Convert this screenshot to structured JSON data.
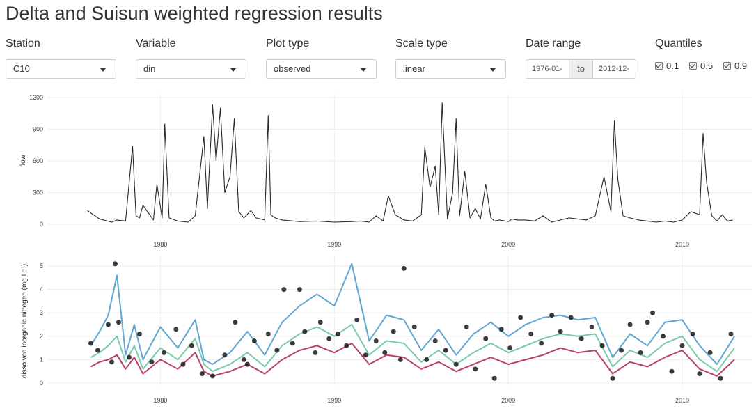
{
  "page": {
    "title": "Delta and Suisun weighted regression results"
  },
  "controls": {
    "station": {
      "label": "Station",
      "value": "C10"
    },
    "variable": {
      "label": "Variable",
      "value": "din"
    },
    "plot_type": {
      "label": "Plot type",
      "value": "observed"
    },
    "scale_type": {
      "label": "Scale type",
      "value": "linear"
    },
    "date_range": {
      "label": "Date range",
      "start": "1976-01-",
      "sep": "to",
      "end": "2012-12-"
    },
    "quantiles": {
      "label": "Quantiles",
      "items": [
        {
          "label": "0.1",
          "checked": true
        },
        {
          "label": "0.5",
          "checked": true
        },
        {
          "label": "0.9",
          "checked": true
        }
      ]
    }
  },
  "chart_data": [
    {
      "type": "line",
      "ylabel": "flow",
      "ylim": [
        0,
        1200
      ],
      "yticks": [
        "0",
        "300",
        "600",
        "900",
        "1200"
      ],
      "xlim": [
        1973.5,
        2014
      ],
      "xticks": [
        "1980",
        "1990",
        "2000",
        "2010"
      ],
      "grid": true,
      "series": [
        {
          "x": [
            1975.8,
            1976.5,
            1977.2,
            1977.5,
            1978.0,
            1978.4,
            1978.6,
            1978.8,
            1979.0,
            1979.6,
            1979.8,
            1980.1,
            1980.25,
            1980.5,
            1981.0,
            1981.6,
            1982.0,
            1982.5,
            1982.7,
            1983.0,
            1983.2,
            1983.45,
            1983.7,
            1984.0,
            1984.25,
            1984.5,
            1984.8,
            1985.2,
            1985.5,
            1986.0,
            1986.2,
            1986.35,
            1986.6,
            1987.0,
            1988.0,
            1989.0,
            1990.0,
            1991.0,
            1991.5,
            1992.0,
            1992.4,
            1992.8,
            1993.1,
            1993.5,
            1994.0,
            1994.5,
            1995.0,
            1995.2,
            1995.5,
            1995.8,
            1996.0,
            1996.2,
            1996.5,
            1996.8,
            1997.0,
            1997.2,
            1997.5,
            1997.8,
            1998.1,
            1998.4,
            1998.7,
            1999.0,
            1999.2,
            1999.5,
            2000.0,
            2000.2,
            2000.5,
            2001.0,
            2001.5,
            2002.0,
            2002.5,
            2003.0,
            2003.5,
            2004.0,
            2004.5,
            2005.0,
            2005.5,
            2005.9,
            2006.1,
            2006.3,
            2006.6,
            2007.0,
            2007.5,
            2008.0,
            2008.5,
            2009.0,
            2009.5,
            2010.0,
            2010.5,
            2011.0,
            2011.2,
            2011.4,
            2011.7,
            2012.0,
            2012.3,
            2012.6,
            2012.9
          ],
          "y": [
            130,
            50,
            20,
            40,
            30,
            740,
            80,
            60,
            180,
            40,
            380,
            60,
            950,
            60,
            30,
            20,
            80,
            830,
            150,
            1130,
            600,
            1100,
            300,
            450,
            1000,
            120,
            60,
            130,
            60,
            40,
            1030,
            90,
            60,
            40,
            25,
            30,
            20,
            25,
            30,
            20,
            80,
            30,
            270,
            90,
            40,
            30,
            90,
            730,
            350,
            550,
            90,
            1150,
            50,
            300,
            1000,
            80,
            500,
            60,
            150,
            50,
            380,
            60,
            30,
            40,
            25,
            50,
            40,
            40,
            30,
            80,
            20,
            40,
            60,
            50,
            40,
            80,
            450,
            120,
            980,
            420,
            80,
            60,
            40,
            30,
            20,
            30,
            20,
            40,
            120,
            90,
            860,
            400,
            80,
            30,
            90,
            30,
            40
          ]
        }
      ]
    },
    {
      "type": "line",
      "ylabel": "dissolved inorganic nitrogen (mg L⁻¹)",
      "ylim": [
        0,
        5.3
      ],
      "yticks": [
        "0",
        "1",
        "2",
        "3",
        "4",
        "5"
      ],
      "xlim": [
        1973.5,
        2014
      ],
      "xticks": [
        "1980",
        "1990",
        "2000",
        "2010"
      ],
      "grid": true,
      "series": [
        {
          "name": "0.1",
          "color": "#b22a5e",
          "x": [
            1976.0,
            1976.5,
            1977.0,
            1977.5,
            1978.0,
            1978.5,
            1979.0,
            1980.0,
            1981.0,
            1982.0,
            1982.5,
            1983.0,
            1984.0,
            1985.0,
            1986.0,
            1987.0,
            1988.0,
            1989.0,
            1990.0,
            1991.0,
            1992.0,
            1993.0,
            1994.0,
            1995.0,
            1996.0,
            1997.0,
            1998.0,
            1999.0,
            2000.0,
            2001.0,
            2002.0,
            2003.0,
            2004.0,
            2005.0,
            2006.0,
            2007.0,
            2008.0,
            2009.0,
            2010.0,
            2011.0,
            2012.0,
            2013.0
          ],
          "y": [
            0.7,
            0.9,
            1.0,
            1.2,
            0.6,
            1.1,
            0.4,
            1.0,
            0.6,
            1.3,
            0.5,
            0.3,
            0.5,
            0.8,
            0.4,
            1.0,
            1.4,
            1.6,
            1.3,
            1.7,
            0.8,
            1.2,
            1.1,
            0.6,
            0.9,
            0.5,
            0.8,
            1.1,
            0.8,
            1.0,
            1.2,
            1.5,
            1.3,
            1.4,
            0.4,
            0.9,
            0.7,
            1.1,
            1.4,
            0.6,
            0.3,
            1.0
          ]
        },
        {
          "name": "0.5",
          "color": "#6cc4a4",
          "x": [
            1976.0,
            1976.5,
            1977.0,
            1977.5,
            1978.0,
            1978.5,
            1979.0,
            1980.0,
            1981.0,
            1982.0,
            1982.5,
            1983.0,
            1984.0,
            1985.0,
            1986.0,
            1987.0,
            1988.0,
            1989.0,
            1990.0,
            1991.0,
            1992.0,
            1993.0,
            1994.0,
            1995.0,
            1996.0,
            1997.0,
            1998.0,
            1999.0,
            2000.0,
            2001.0,
            2002.0,
            2003.0,
            2004.0,
            2005.0,
            2006.0,
            2007.0,
            2008.0,
            2009.0,
            2010.0,
            2011.0,
            2012.0,
            2013.0
          ],
          "y": [
            1.1,
            1.3,
            1.6,
            2.0,
            0.9,
            1.6,
            0.6,
            1.5,
            1.0,
            1.9,
            0.8,
            0.5,
            0.8,
            1.3,
            0.7,
            1.6,
            2.1,
            2.4,
            2.0,
            2.5,
            1.2,
            1.8,
            1.7,
            0.9,
            1.4,
            0.8,
            1.3,
            1.7,
            1.3,
            1.6,
            1.9,
            2.1,
            2.0,
            2.1,
            0.7,
            1.4,
            1.1,
            1.7,
            2.0,
            1.0,
            0.5,
            1.5
          ]
        },
        {
          "name": "0.9",
          "color": "#4e9ccb",
          "x": [
            1976.0,
            1976.5,
            1977.0,
            1977.5,
            1978.0,
            1978.5,
            1979.0,
            1980.0,
            1981.0,
            1982.0,
            1982.5,
            1983.0,
            1984.0,
            1985.0,
            1986.0,
            1987.0,
            1988.0,
            1989.0,
            1990.0,
            1991.0,
            1992.0,
            1993.0,
            1994.0,
            1995.0,
            1996.0,
            1997.0,
            1998.0,
            1999.0,
            2000.0,
            2001.0,
            2002.0,
            2003.0,
            2004.0,
            2005.0,
            2006.0,
            2007.0,
            2008.0,
            2009.0,
            2010.0,
            2011.0,
            2012.0,
            2013.0
          ],
          "y": [
            1.6,
            2.2,
            2.9,
            4.6,
            1.2,
            2.5,
            1.0,
            2.4,
            1.5,
            2.7,
            1.0,
            0.8,
            1.3,
            2.2,
            1.2,
            2.6,
            3.3,
            3.8,
            3.3,
            5.1,
            1.8,
            2.9,
            2.7,
            1.4,
            2.3,
            1.2,
            2.1,
            2.6,
            2.0,
            2.5,
            2.8,
            2.9,
            2.7,
            2.8,
            1.1,
            2.1,
            1.6,
            2.6,
            2.7,
            1.6,
            0.8,
            2.0
          ]
        }
      ],
      "points": {
        "x": [
          1976.0,
          1976.4,
          1977.0,
          1977.2,
          1977.4,
          1977.6,
          1978.2,
          1978.8,
          1979.5,
          1980.2,
          1980.9,
          1981.3,
          1981.8,
          1982.4,
          1983.0,
          1983.7,
          1984.3,
          1984.8,
          1985.0,
          1985.4,
          1986.2,
          1986.7,
          1987.1,
          1987.6,
          1988.0,
          1988.3,
          1988.9,
          1989.2,
          1989.7,
          1990.2,
          1990.7,
          1991.3,
          1991.8,
          1992.4,
          1992.9,
          1993.4,
          1993.8,
          1994.0,
          1994.6,
          1995.3,
          1995.8,
          1996.4,
          1997.0,
          1997.6,
          1998.1,
          1998.7,
          1999.2,
          1999.6,
          2000.1,
          2000.7,
          2001.3,
          2001.9,
          2002.5,
          2003.0,
          2003.6,
          2004.2,
          2004.8,
          2005.4,
          2006.0,
          2006.5,
          2007.0,
          2007.6,
          2008.0,
          2008.3,
          2008.9,
          2009.4,
          2010.0,
          2010.6,
          2011.0,
          2011.6,
          2012.2,
          2012.8
        ],
        "y": [
          1.7,
          1.4,
          2.5,
          0.9,
          5.1,
          2.6,
          1.1,
          2.1,
          0.9,
          1.3,
          2.3,
          0.8,
          1.6,
          0.4,
          0.3,
          1.2,
          2.6,
          1.0,
          0.8,
          1.8,
          2.1,
          1.4,
          4.0,
          1.7,
          4.0,
          2.2,
          1.3,
          2.6,
          1.9,
          2.1,
          1.6,
          2.7,
          1.2,
          1.8,
          1.3,
          2.2,
          1.0,
          4.9,
          2.4,
          1.0,
          1.8,
          1.4,
          0.8,
          2.4,
          0.6,
          1.9,
          0.2,
          2.3,
          1.5,
          2.8,
          2.1,
          1.7,
          2.9,
          2.2,
          2.8,
          1.9,
          2.4,
          1.6,
          0.2,
          1.4,
          2.5,
          1.3,
          2.6,
          3.0,
          2.0,
          0.5,
          1.6,
          2.1,
          0.4,
          1.3,
          0.2,
          2.1
        ]
      }
    }
  ]
}
